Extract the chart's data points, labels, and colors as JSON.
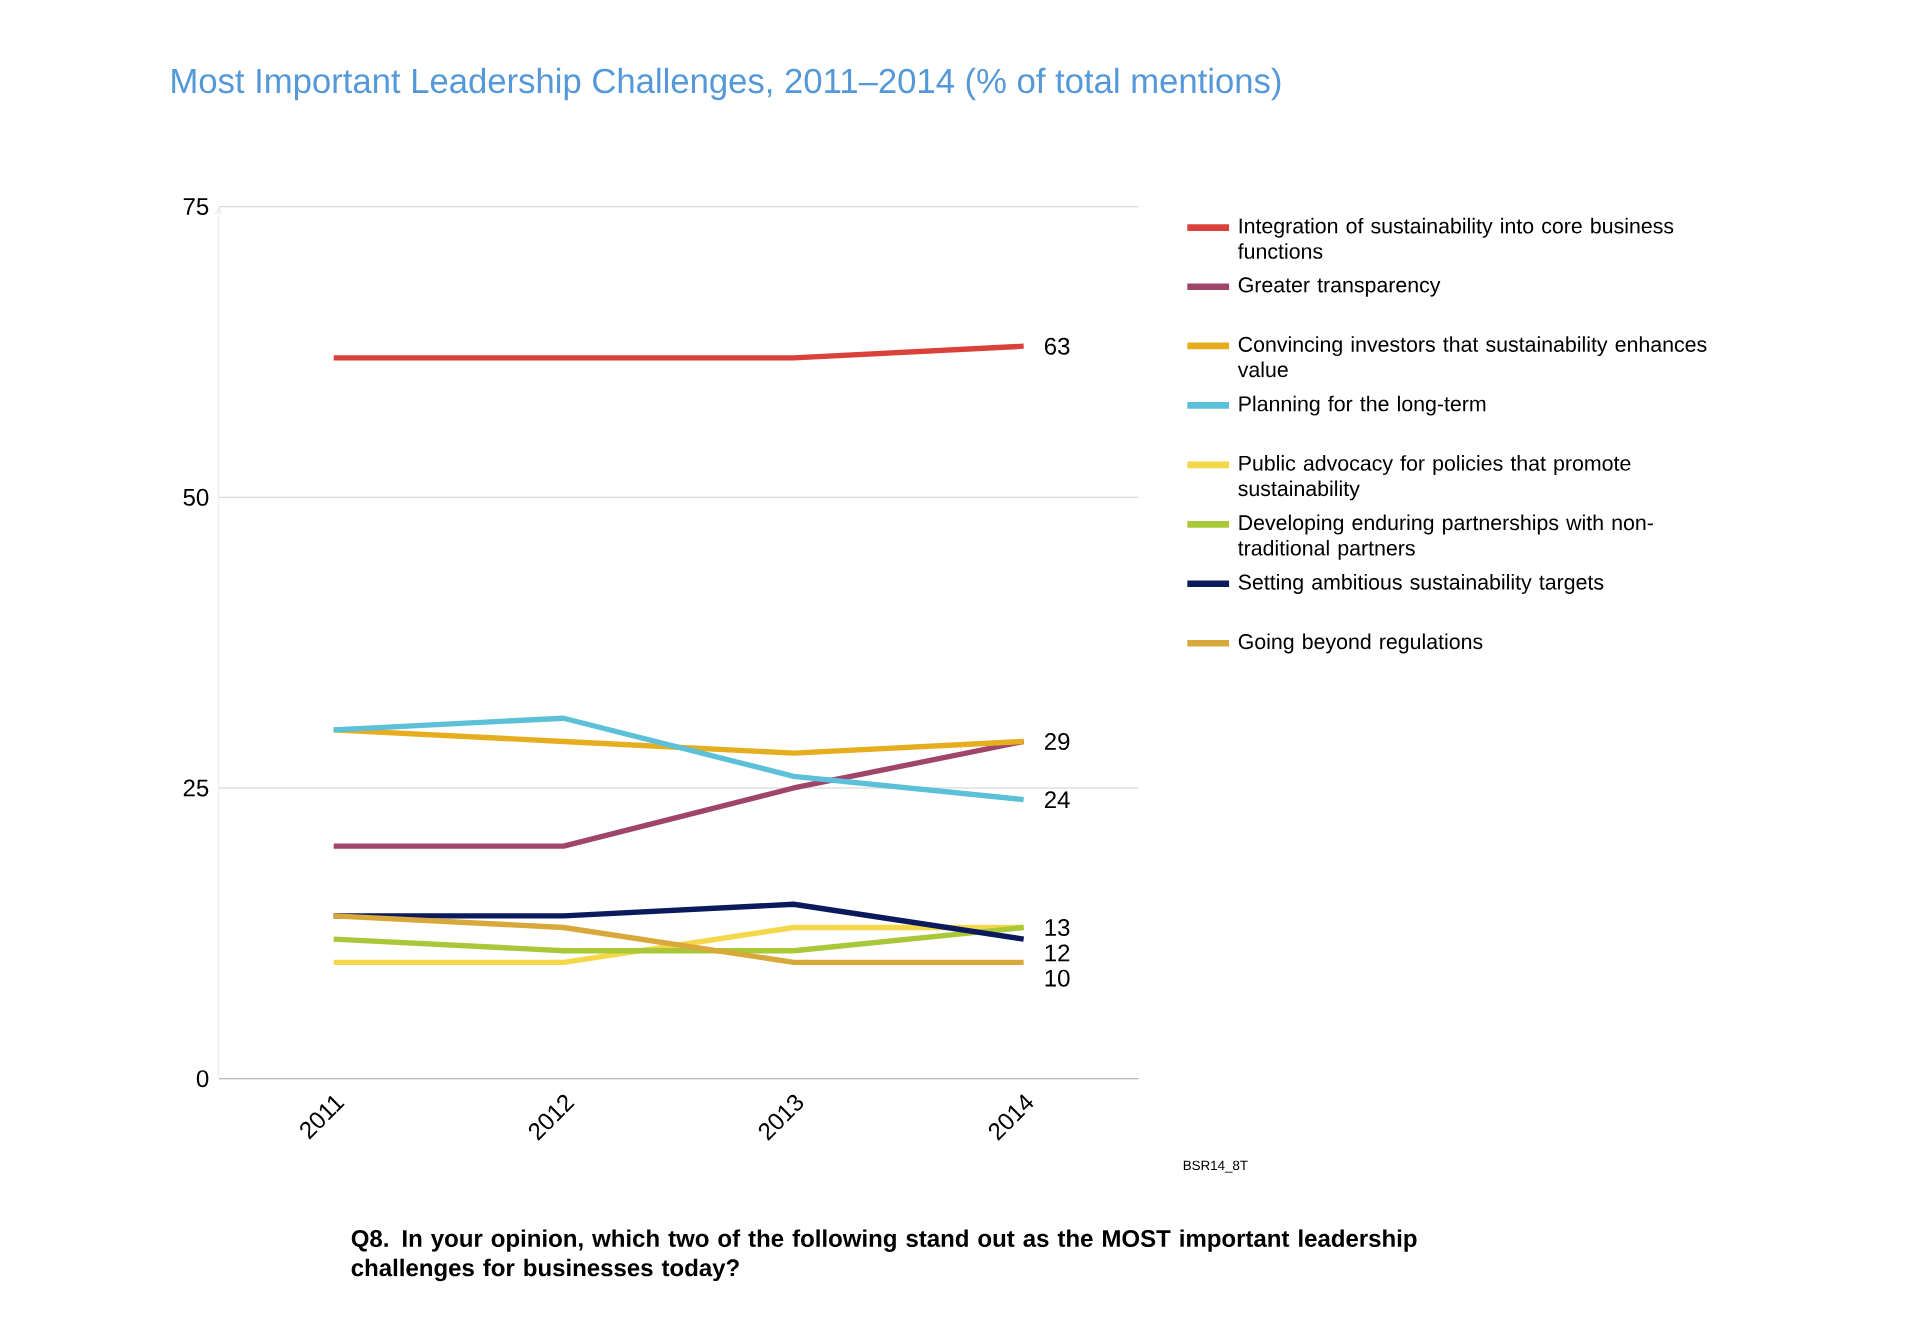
{
  "chart_data": {
    "type": "line",
    "title": "Most Important Leadership Challenges, 2011–2014 (% of total mentions)",
    "categories": [
      "2011",
      "2012",
      "2013",
      "2014"
    ],
    "series": [
      {
        "name": "Integration of sustainability into core business functions",
        "color": "#d9413a",
        "values": [
          62,
          62,
          62,
          63
        ],
        "value_labels": [
          null,
          null,
          null,
          "63"
        ]
      },
      {
        "name": "Greater transparency",
        "color": "#a0456a",
        "values": [
          20,
          20,
          25,
          29
        ]
      },
      {
        "name": "Convincing investors that sustainability enhances value",
        "color": "#e6ad1e",
        "values": [
          30,
          29,
          28,
          29
        ],
        "value_labels": [
          null,
          null,
          null,
          "29"
        ]
      },
      {
        "name": "Planning for the long-term",
        "color": "#5bc0d8",
        "values": [
          30,
          31,
          26,
          24
        ],
        "value_labels": [
          null,
          null,
          null,
          "24"
        ]
      },
      {
        "name": "Public advocacy for policies that promote sustainability",
        "color": "#f5d84a",
        "values": [
          10,
          10,
          13,
          13
        ],
        "value_labels": [
          null,
          null,
          null,
          "13"
        ]
      },
      {
        "name": "Developing enduring partnerships with non-traditional partners",
        "color": "#a8c83a",
        "values": [
          12,
          11,
          11,
          13
        ]
      },
      {
        "name": "Setting ambitious sustainability targets",
        "color": "#0a1a5c",
        "values": [
          14,
          14,
          15,
          12
        ],
        "value_labels": [
          null,
          null,
          null,
          "12"
        ]
      },
      {
        "name": "Going beyond regulations",
        "color": "#d9a83a",
        "values": [
          14,
          13,
          10,
          10
        ],
        "value_labels": [
          null,
          null,
          null,
          "10"
        ]
      }
    ],
    "ylim": [
      0,
      75
    ],
    "yticks": [
      0,
      25,
      50,
      75
    ],
    "grid": "y",
    "legend": "right",
    "line_style": "solid",
    "annotations": [
      "BSR14_8T",
      "Q8. In your opinion, which two of the following stand out as the MOST important leadership challenges for businesses today?"
    ]
  }
}
